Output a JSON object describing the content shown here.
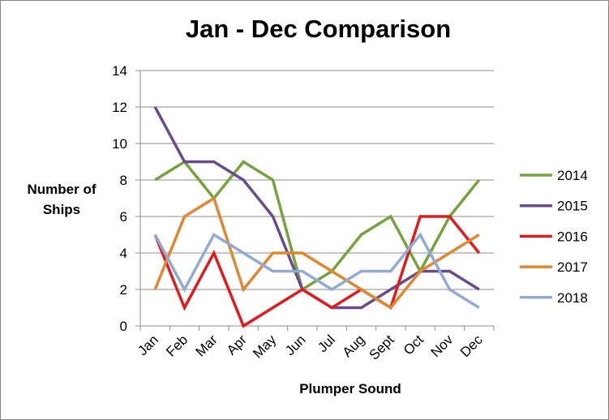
{
  "chart_data": {
    "type": "line",
    "title": "Jan - Dec  Comparison",
    "xlabel": "Plumper Sound",
    "ylabel": "Number of Ships",
    "ylim": [
      0,
      14
    ],
    "yticks": [
      "0",
      "2",
      "4",
      "6",
      "8",
      "10",
      "12",
      "14"
    ],
    "grid": true,
    "legend_position": "right",
    "categories": [
      "Jan",
      "Feb",
      "Mar",
      "Apr",
      "May",
      "Jun",
      "Jul",
      "Aug",
      "Sept",
      "Oct",
      "Nov",
      "Dec"
    ],
    "series": [
      {
        "name": "2014",
        "color": "#77a33f",
        "values": [
          8,
          9,
          7,
          9,
          8,
          2,
          3,
          5,
          6,
          3,
          6,
          8
        ]
      },
      {
        "name": "2015",
        "color": "#6a4c8c",
        "values": [
          12,
          9,
          9,
          8,
          6,
          2,
          1,
          1,
          2,
          3,
          3,
          2
        ]
      },
      {
        "name": "2016",
        "color": "#e31a1c",
        "values": [
          5,
          1,
          4,
          0,
          1,
          2,
          1,
          2,
          1,
          6,
          6,
          4
        ]
      },
      {
        "name": "2017",
        "color": "#e2862f",
        "values": [
          2,
          6,
          7,
          2,
          4,
          4,
          3,
          2,
          1,
          3,
          4,
          5
        ]
      },
      {
        "name": "2018",
        "color": "#93abd3",
        "values": [
          5,
          2,
          5,
          4,
          3,
          3,
          2,
          3,
          3,
          5,
          2,
          1
        ]
      }
    ]
  }
}
